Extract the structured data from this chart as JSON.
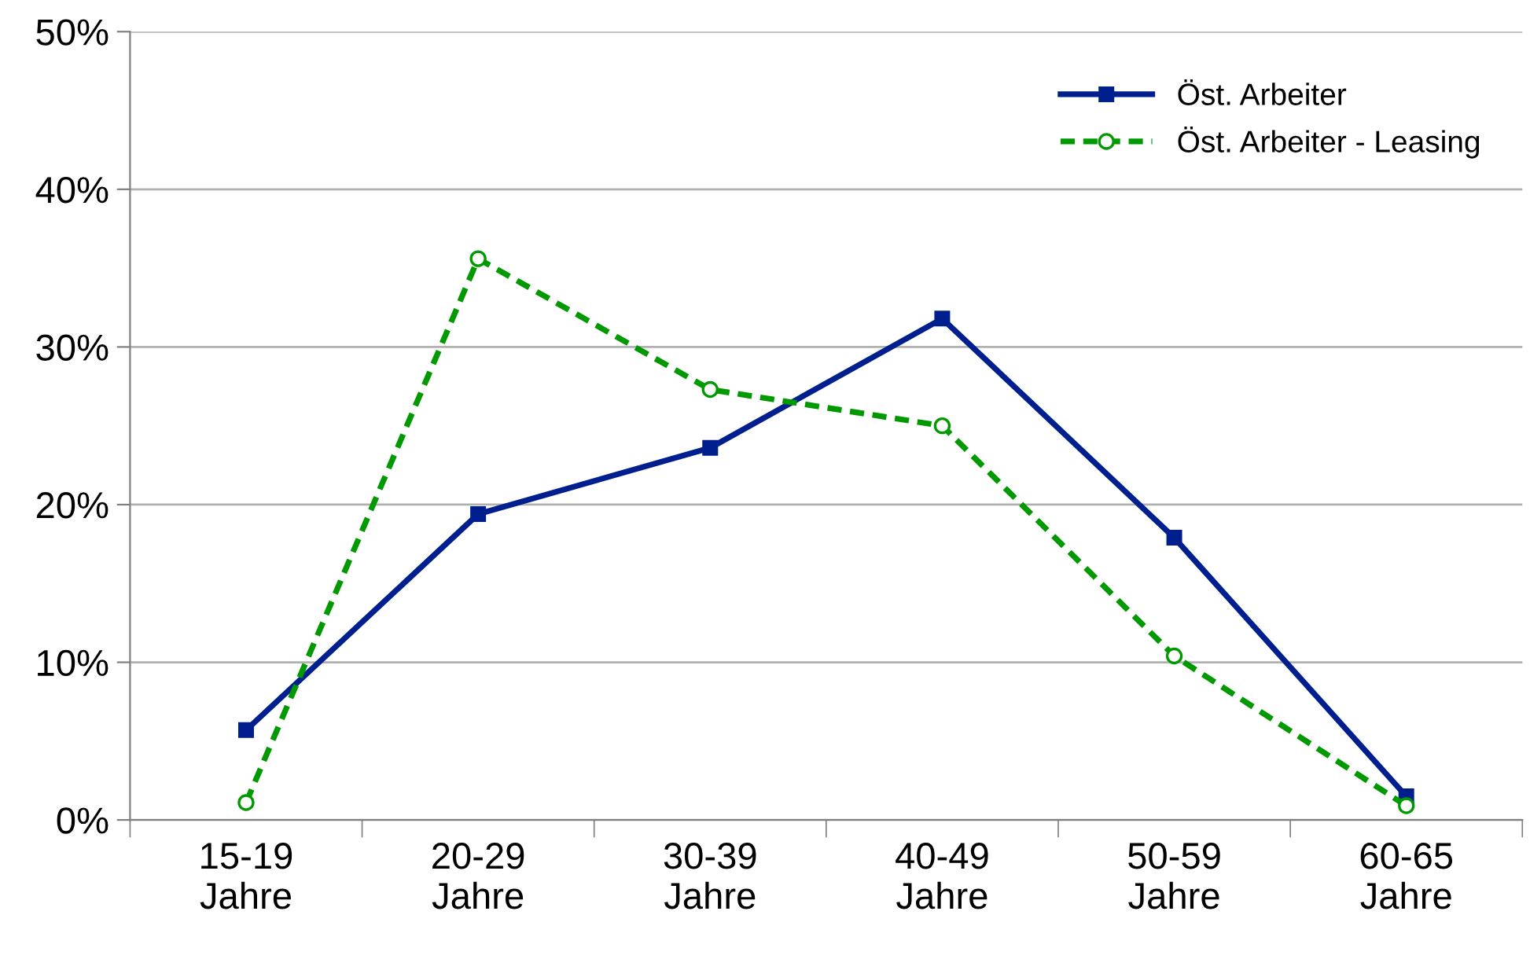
{
  "chart_data": {
    "type": "line",
    "categories": [
      "15-19\nJahre",
      "20-29\nJahre",
      "30-39\nJahre",
      "40-49\nJahre",
      "50-59\nJahre",
      "60-65\nJahre"
    ],
    "series": [
      {
        "name": "Öst. Arbeiter",
        "color": "#001f8f",
        "marker": "square",
        "line_style": "solid",
        "values": [
          5.7,
          19.4,
          23.6,
          31.8,
          17.9,
          1.5
        ]
      },
      {
        "name": "Öst. Arbeiter - Leasing",
        "color": "#009a00",
        "marker": "circle",
        "line_style": "dashed",
        "values": [
          1.1,
          35.6,
          27.3,
          25.0,
          10.4,
          0.9
        ]
      }
    ],
    "ylim": [
      0,
      50
    ],
    "yticks": [
      {
        "value": 0,
        "label": "0%"
      },
      {
        "value": 10,
        "label": "10%"
      },
      {
        "value": 20,
        "label": "20%"
      },
      {
        "value": 30,
        "label": "30%"
      },
      {
        "value": 40,
        "label": "40%"
      },
      {
        "value": 50,
        "label": "50%"
      }
    ],
    "grid": "y",
    "legend": "top right"
  }
}
